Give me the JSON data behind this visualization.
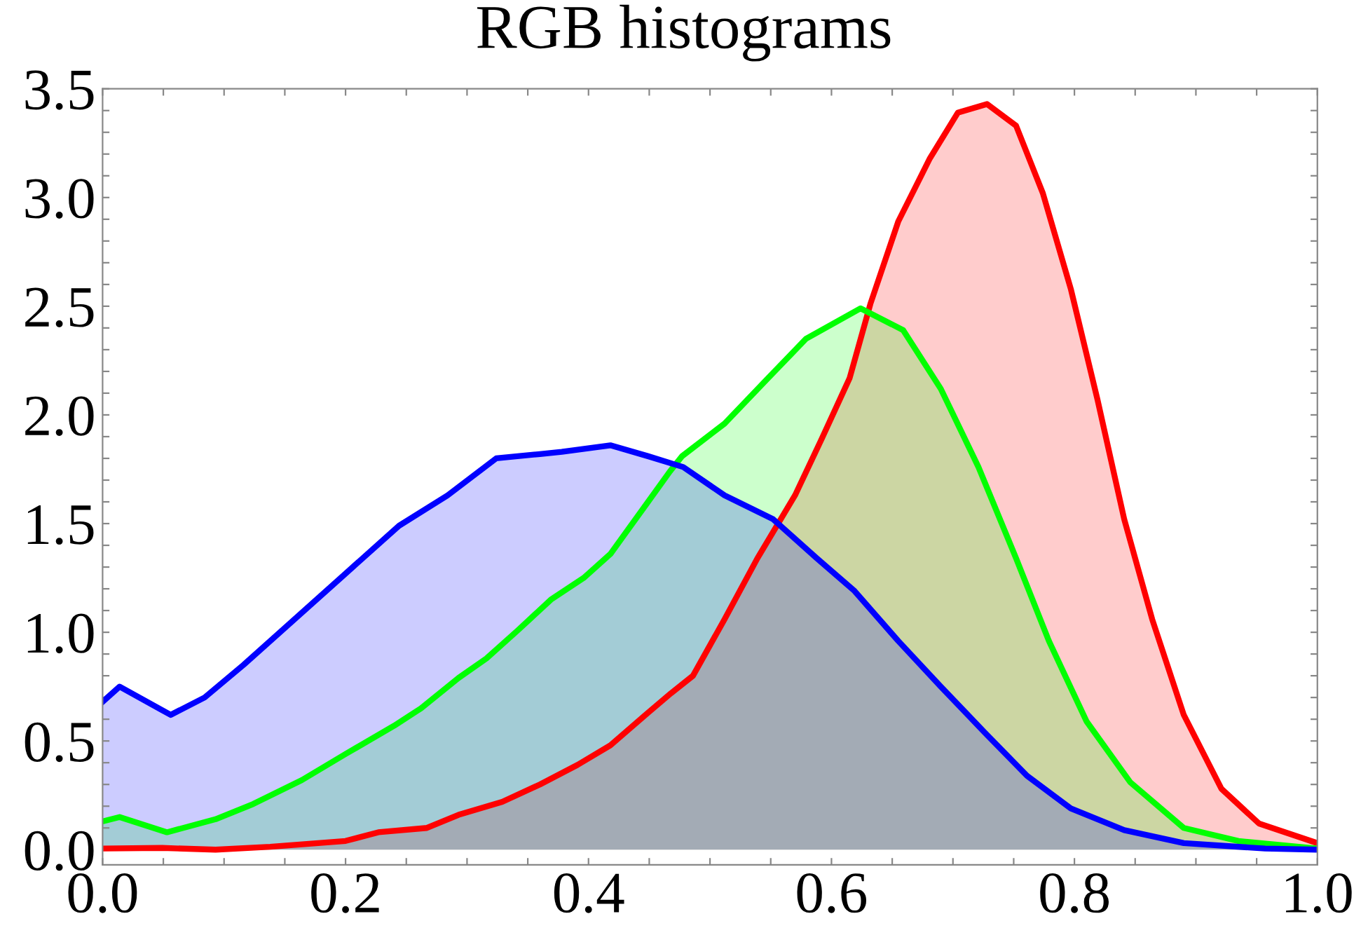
{
  "chart_data": {
    "type": "area",
    "title": "RGB histograms",
    "xlim": [
      0,
      1
    ],
    "ylim": [
      -0.07,
      3.5
    ],
    "xticks": [
      {
        "value": 0,
        "label": "0.0"
      },
      {
        "value": 0.05,
        "label": null
      },
      {
        "value": 0.1,
        "label": null
      },
      {
        "value": 0.15,
        "label": null
      },
      {
        "value": 0.2,
        "label": "0.2"
      },
      {
        "value": 0.25,
        "label": null
      },
      {
        "value": 0.3,
        "label": null
      },
      {
        "value": 0.35,
        "label": null
      },
      {
        "value": 0.4,
        "label": "0.4"
      },
      {
        "value": 0.45,
        "label": null
      },
      {
        "value": 0.5,
        "label": null
      },
      {
        "value": 0.55,
        "label": null
      },
      {
        "value": 0.6,
        "label": "0.6"
      },
      {
        "value": 0.65,
        "label": null
      },
      {
        "value": 0.7,
        "label": null
      },
      {
        "value": 0.75,
        "label": null
      },
      {
        "value": 0.8,
        "label": "0.8"
      },
      {
        "value": 0.85,
        "label": null
      },
      {
        "value": 0.9,
        "label": null
      },
      {
        "value": 0.95,
        "label": null
      },
      {
        "value": 1,
        "label": "1.0"
      }
    ],
    "yticks": [
      {
        "value": 0,
        "label": "0.0"
      },
      {
        "value": 0.1,
        "label": null
      },
      {
        "value": 0.2,
        "label": null
      },
      {
        "value": 0.3,
        "label": null
      },
      {
        "value": 0.4,
        "label": null
      },
      0.5,
      {
        "value": 0.6,
        "label": null
      },
      {
        "value": 0.7,
        "label": null
      },
      {
        "value": 0.8,
        "label": null
      },
      {
        "value": 0.9,
        "label": null
      },
      {
        "value": 1,
        "label": "1.0"
      },
      {
        "value": 1.1,
        "label": null
      },
      {
        "value": 1.2,
        "label": null
      },
      {
        "value": 1.3,
        "label": null
      },
      {
        "value": 1.4,
        "label": null
      },
      1.5,
      {
        "value": 1.6,
        "label": null
      },
      {
        "value": 1.7,
        "label": null
      },
      {
        "value": 1.8,
        "label": null
      },
      {
        "value": 1.9,
        "label": null
      },
      {
        "value": 2,
        "label": "2.0"
      },
      {
        "value": 2.1,
        "label": null
      },
      {
        "value": 2.2,
        "label": null
      },
      {
        "value": 2.3,
        "label": null
      },
      {
        "value": 2.4,
        "label": null
      },
      2.5,
      {
        "value": 2.6,
        "label": null
      },
      {
        "value": 2.7,
        "label": null
      },
      {
        "value": 2.8,
        "label": null
      },
      {
        "value": 2.9,
        "label": null
      },
      {
        "value": 3,
        "label": "3.0"
      },
      {
        "value": 3.1,
        "label": null
      },
      {
        "value": 3.2,
        "label": null
      },
      {
        "value": 3.3,
        "label": null
      },
      {
        "value": 3.4,
        "label": null
      },
      3.5
    ],
    "grid": false,
    "legend": false,
    "line_style": "solid",
    "marker": "none",
    "series": [
      {
        "color": "#ff0000",
        "x": [
          0,
          0.049,
          0.093,
          0.138,
          0.2,
          0.227,
          0.267,
          0.293,
          0.329,
          0.36,
          0.391,
          0.418,
          0.449,
          0.468,
          0.486,
          0.512,
          0.539,
          0.57,
          0.592,
          0.615,
          0.632,
          0.655,
          0.681,
          0.704,
          0.728,
          0.752,
          0.774,
          0.797,
          0.819,
          0.841,
          0.864,
          0.89,
          0.921,
          0.952,
          1.0
        ],
        "values": [
          0.005,
          0.008,
          0,
          0.013,
          0.04,
          0.08,
          0.1,
          0.16,
          0.22,
          0.3,
          0.39,
          0.48,
          0.63,
          0.72,
          0.8,
          1.06,
          1.34,
          1.63,
          1.89,
          2.17,
          2.51,
          2.89,
          3.18,
          3.39,
          3.43,
          3.33,
          3.02,
          2.58,
          2.07,
          1.52,
          1.06,
          0.62,
          0.28,
          0.12,
          0.03
        ]
      },
      {
        "color": "#00ff00",
        "x": [
          0,
          0.014,
          0.053,
          0.093,
          0.124,
          0.164,
          0.2,
          0.24,
          0.262,
          0.293,
          0.316,
          0.342,
          0.369,
          0.396,
          0.418,
          0.449,
          0.467,
          0.477,
          0.512,
          0.548,
          0.579,
          0.624,
          0.659,
          0.69,
          0.721,
          0.752,
          0.779,
          0.81,
          0.846,
          0.89,
          0.935,
          1.0
        ],
        "values": [
          0.13,
          0.15,
          0.08,
          0.14,
          0.21,
          0.32,
          0.44,
          0.57,
          0.65,
          0.79,
          0.88,
          1.01,
          1.15,
          1.25,
          1.36,
          1.6,
          1.74,
          1.81,
          1.96,
          2.17,
          2.35,
          2.49,
          2.39,
          2.12,
          1.76,
          1.34,
          0.96,
          0.59,
          0.31,
          0.1,
          0.04,
          0.005
        ]
      },
      {
        "color": "#0000ff",
        "x": [
          0,
          0.014,
          0.056,
          0.084,
          0.116,
          0.156,
          0.2,
          0.244,
          0.284,
          0.324,
          0.36,
          0.378,
          0.418,
          0.449,
          0.478,
          0.512,
          0.552,
          0.588,
          0.619,
          0.655,
          0.69,
          0.726,
          0.761,
          0.797,
          0.841,
          0.89,
          0.957,
          1.0
        ],
        "values": [
          0.68,
          0.75,
          0.62,
          0.7,
          0.85,
          1.05,
          1.27,
          1.49,
          1.63,
          1.8,
          1.82,
          1.83,
          1.86,
          1.81,
          1.76,
          1.63,
          1.52,
          1.34,
          1.19,
          0.96,
          0.75,
          0.54,
          0.34,
          0.19,
          0.09,
          0.03,
          0.005,
          0
        ]
      }
    ]
  }
}
